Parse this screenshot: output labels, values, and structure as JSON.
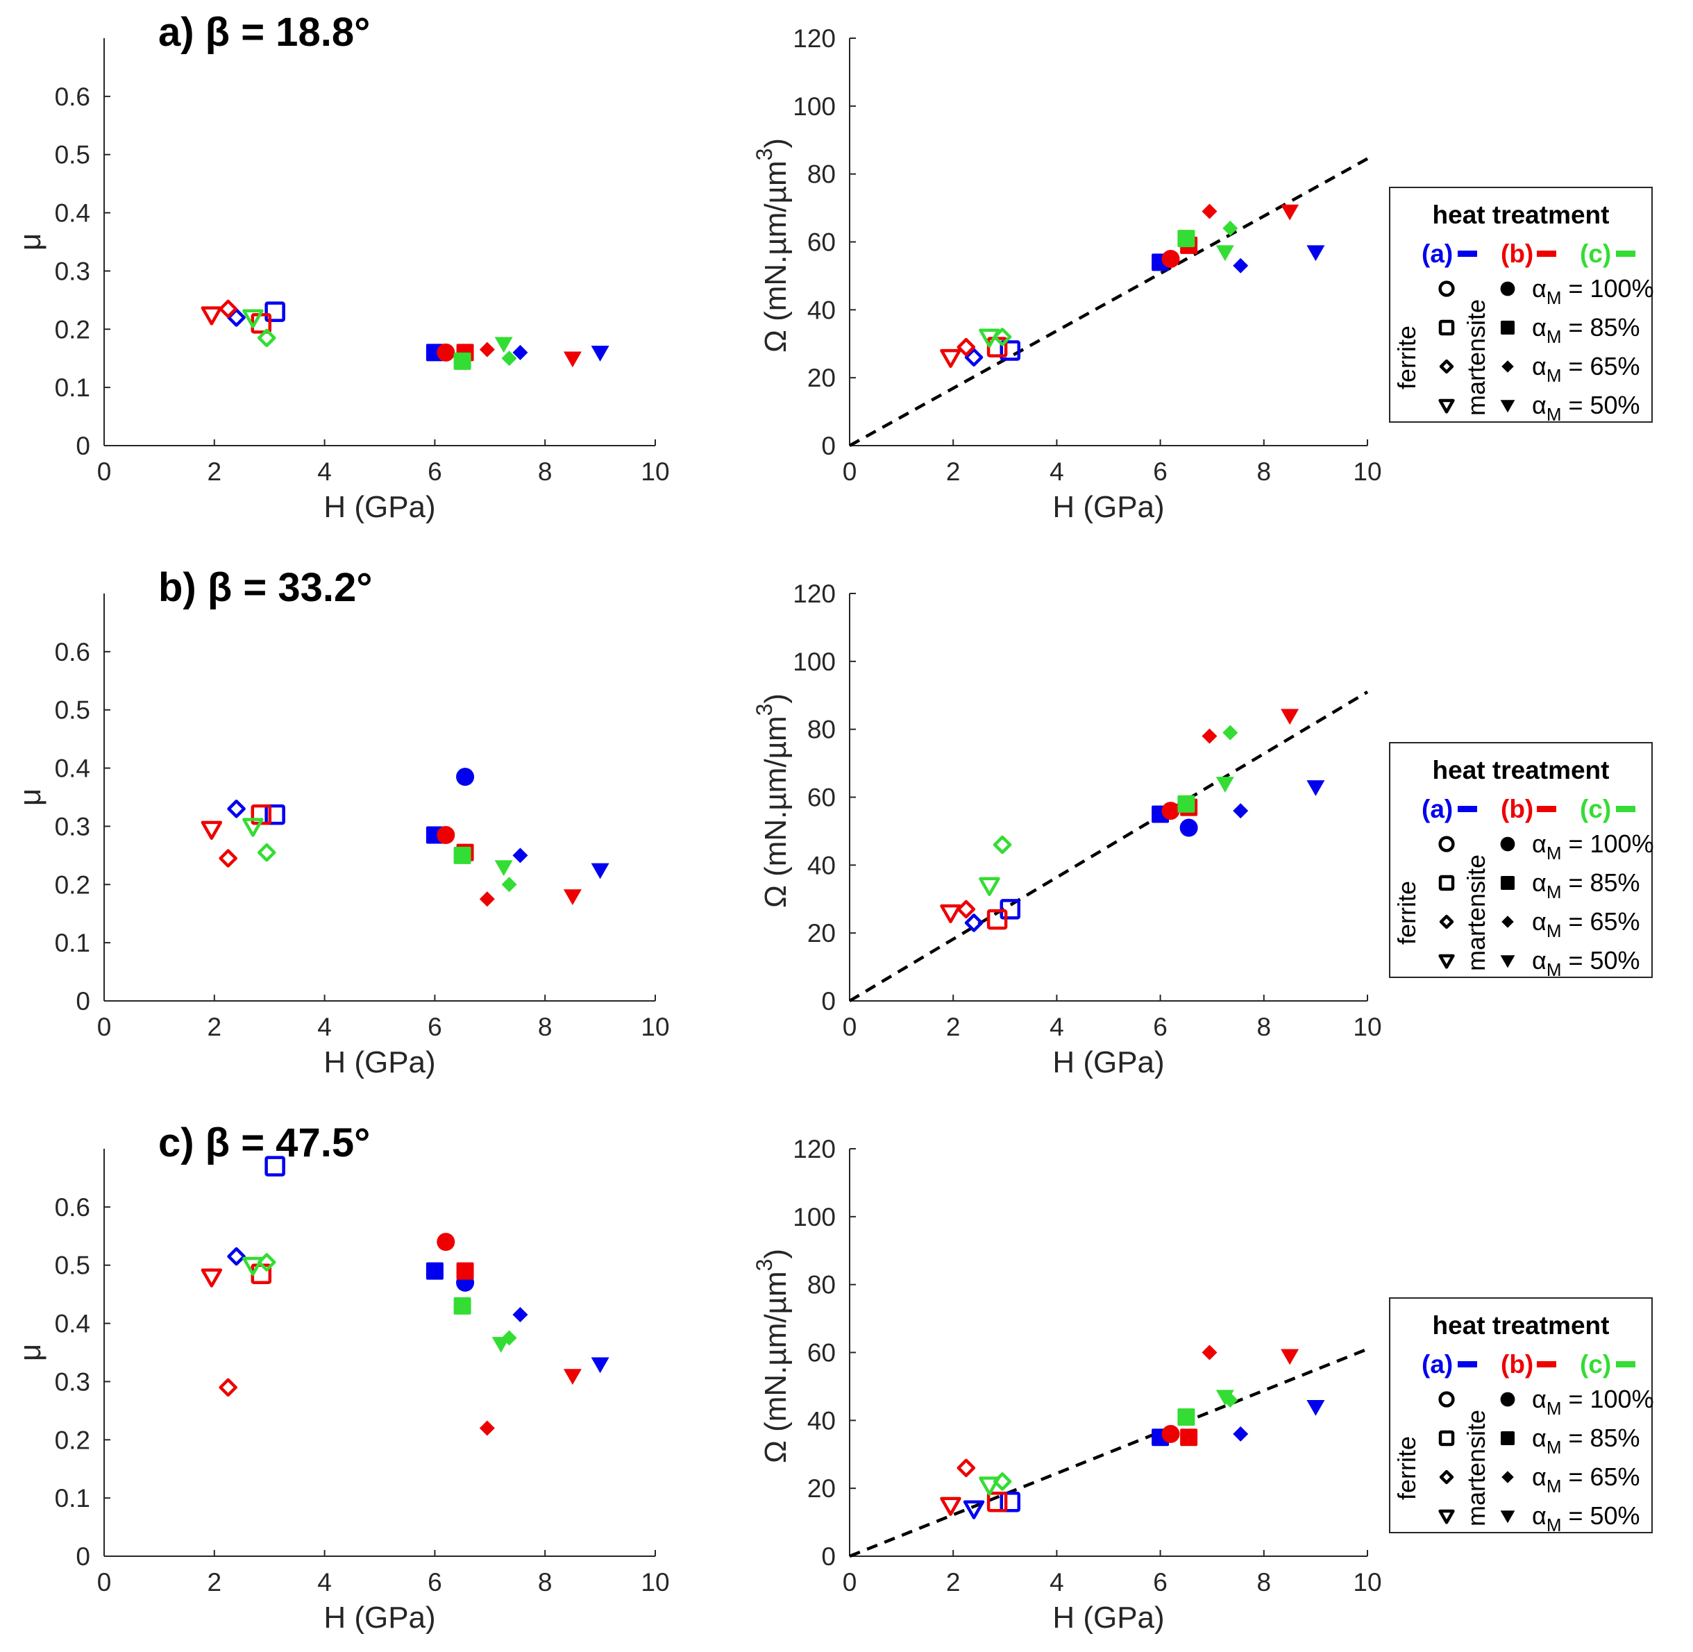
{
  "figure": {
    "colors": {
      "a": "#0000ee",
      "b": "#ee0000",
      "c": "#33dd33",
      "axis": "#262626"
    },
    "legend": {
      "title": "heat treatment",
      "groups": [
        {
          "key": "a",
          "label": "(a)"
        },
        {
          "key": "b",
          "label": "(b)"
        },
        {
          "key": "c",
          "label": "(c)"
        }
      ],
      "ferrite_label": "ferrite",
      "martensite_label": "martensite",
      "alpha_symbol": "α",
      "alpha_sub": "M",
      "rows": [
        {
          "marker": "circle",
          "label": " = 100%"
        },
        {
          "marker": "square",
          "label": " = 85%"
        },
        {
          "marker": "diamond",
          "label": " = 65%"
        },
        {
          "marker": "triangle",
          "label": " = 50%"
        }
      ]
    }
  },
  "chart_data": [
    {
      "panel": "a-mu",
      "type": "scatter",
      "title": "a) β = 18.8°",
      "xlabel": "H (GPa)",
      "ylabel": "μ",
      "xlim": [
        0,
        10
      ],
      "ylim": [
        0,
        0.7
      ],
      "xticks": [
        "0",
        "2",
        "4",
        "6",
        "8",
        "10"
      ],
      "yticks": [
        "0",
        "0.1",
        "0.2",
        "0.3",
        "0.4",
        "0.5",
        "0.6"
      ],
      "series": [
        {
          "treatment": "a",
          "phase": "ferrite",
          "points": [
            [
              2.4,
              0.22,
              "diamond"
            ],
            [
              3.1,
              0.23,
              "square"
            ]
          ]
        },
        {
          "treatment": "b",
          "phase": "ferrite",
          "points": [
            [
              1.95,
              0.225,
              "triangle"
            ],
            [
              2.25,
              0.235,
              "diamond"
            ],
            [
              2.85,
              0.21,
              "square"
            ]
          ]
        },
        {
          "treatment": "c",
          "phase": "ferrite",
          "points": [
            [
              2.7,
              0.22,
              "triangle"
            ],
            [
              2.95,
              0.185,
              "diamond"
            ]
          ]
        },
        {
          "treatment": "a",
          "phase": "martensite",
          "points": [
            [
              6.0,
              0.16,
              "square"
            ],
            [
              7.55,
              0.16,
              "diamond"
            ],
            [
              9.0,
              0.16,
              "triangle"
            ]
          ]
        },
        {
          "treatment": "b",
          "phase": "martensite",
          "points": [
            [
              6.2,
              0.16,
              "circle"
            ],
            [
              6.55,
              0.16,
              "square"
            ],
            [
              6.95,
              0.165,
              "diamond"
            ],
            [
              8.5,
              0.15,
              "triangle"
            ]
          ]
        },
        {
          "treatment": "c",
          "phase": "martensite",
          "points": [
            [
              6.5,
              0.145,
              "square"
            ],
            [
              7.25,
              0.175,
              "triangle"
            ],
            [
              7.35,
              0.15,
              "diamond"
            ]
          ]
        }
      ]
    },
    {
      "panel": "a-omega",
      "type": "scatter",
      "title": "",
      "xlabel": "H (GPa)",
      "ylabel": "Ω (mN.µm/µm",
      "ylabel_sup": "3",
      "ylabel_end": ")",
      "xlim": [
        0,
        10
      ],
      "ylim": [
        0,
        120
      ],
      "xticks": [
        "0",
        "2",
        "4",
        "6",
        "8",
        "10"
      ],
      "yticks": [
        "0",
        "20",
        "40",
        "60",
        "80",
        "100",
        "120"
      ],
      "fit_line": {
        "x": [
          0,
          10
        ],
        "y": [
          0,
          84.5
        ]
      },
      "series": [
        {
          "treatment": "a",
          "phase": "ferrite",
          "points": [
            [
              2.4,
              26,
              "diamond"
            ],
            [
              3.1,
              28,
              "square"
            ]
          ]
        },
        {
          "treatment": "b",
          "phase": "ferrite",
          "points": [
            [
              1.95,
              26,
              "triangle"
            ],
            [
              2.25,
              29,
              "diamond"
            ],
            [
              2.85,
              29,
              "square"
            ]
          ]
        },
        {
          "treatment": "c",
          "phase": "ferrite",
          "points": [
            [
              2.7,
              32,
              "triangle"
            ],
            [
              2.95,
              32,
              "diamond"
            ]
          ]
        },
        {
          "treatment": "a",
          "phase": "martensite",
          "points": [
            [
              6.0,
              54,
              "square"
            ],
            [
              7.55,
              53,
              "diamond"
            ],
            [
              9.0,
              57,
              "triangle"
            ]
          ]
        },
        {
          "treatment": "b",
          "phase": "martensite",
          "points": [
            [
              6.2,
              55,
              "circle"
            ],
            [
              6.55,
              59,
              "square"
            ],
            [
              6.95,
              69,
              "diamond"
            ],
            [
              8.5,
              69,
              "triangle"
            ]
          ]
        },
        {
          "treatment": "c",
          "phase": "martensite",
          "points": [
            [
              6.5,
              61,
              "square"
            ],
            [
              7.25,
              57,
              "triangle"
            ],
            [
              7.35,
              64,
              "diamond"
            ]
          ]
        }
      ]
    },
    {
      "panel": "b-mu",
      "type": "scatter",
      "title": "b) β = 33.2°",
      "xlabel": "H (GPa)",
      "ylabel": "μ",
      "xlim": [
        0,
        10
      ],
      "ylim": [
        0,
        0.7
      ],
      "xticks": [
        "0",
        "2",
        "4",
        "6",
        "8",
        "10"
      ],
      "yticks": [
        "0",
        "0.1",
        "0.2",
        "0.3",
        "0.4",
        "0.5",
        "0.6"
      ],
      "series": [
        {
          "treatment": "a",
          "phase": "ferrite",
          "points": [
            [
              2.4,
              0.33,
              "diamond"
            ],
            [
              3.1,
              0.32,
              "square"
            ]
          ]
        },
        {
          "treatment": "b",
          "phase": "ferrite",
          "points": [
            [
              1.95,
              0.295,
              "triangle"
            ],
            [
              2.25,
              0.245,
              "diamond"
            ],
            [
              2.85,
              0.32,
              "square"
            ]
          ]
        },
        {
          "treatment": "c",
          "phase": "ferrite",
          "points": [
            [
              2.7,
              0.3,
              "triangle"
            ],
            [
              2.95,
              0.255,
              "diamond"
            ]
          ]
        },
        {
          "treatment": "a",
          "phase": "martensite",
          "points": [
            [
              6.0,
              0.285,
              "square"
            ],
            [
              6.55,
              0.385,
              "circle"
            ],
            [
              7.55,
              0.25,
              "diamond"
            ],
            [
              9.0,
              0.225,
              "triangle"
            ]
          ]
        },
        {
          "treatment": "b",
          "phase": "martensite",
          "points": [
            [
              6.2,
              0.285,
              "circle"
            ],
            [
              6.55,
              0.255,
              "square"
            ],
            [
              6.95,
              0.175,
              "diamond"
            ],
            [
              8.5,
              0.18,
              "triangle"
            ]
          ]
        },
        {
          "treatment": "c",
          "phase": "martensite",
          "points": [
            [
              6.5,
              0.25,
              "square"
            ],
            [
              7.25,
              0.23,
              "triangle"
            ],
            [
              7.35,
              0.2,
              "diamond"
            ]
          ]
        }
      ]
    },
    {
      "panel": "b-omega",
      "type": "scatter",
      "title": "",
      "xlabel": "H (GPa)",
      "ylabel": "Ω (mN.µm/µm",
      "ylabel_sup": "3",
      "ylabel_end": ")",
      "xlim": [
        0,
        10
      ],
      "ylim": [
        0,
        120
      ],
      "xticks": [
        "0",
        "2",
        "4",
        "6",
        "8",
        "10"
      ],
      "yticks": [
        "0",
        "20",
        "40",
        "60",
        "80",
        "100",
        "120"
      ],
      "fit_line": {
        "x": [
          0,
          10
        ],
        "y": [
          0,
          91
        ]
      },
      "series": [
        {
          "treatment": "a",
          "phase": "ferrite",
          "points": [
            [
              2.4,
              23,
              "diamond"
            ],
            [
              3.1,
              27,
              "square"
            ]
          ]
        },
        {
          "treatment": "b",
          "phase": "ferrite",
          "points": [
            [
              1.95,
              26,
              "triangle"
            ],
            [
              2.25,
              27,
              "diamond"
            ],
            [
              2.85,
              24,
              "square"
            ]
          ]
        },
        {
          "treatment": "c",
          "phase": "ferrite",
          "points": [
            [
              2.7,
              34,
              "triangle"
            ],
            [
              2.95,
              46,
              "diamond"
            ]
          ]
        },
        {
          "treatment": "a",
          "phase": "martensite",
          "points": [
            [
              6.0,
              55,
              "square"
            ],
            [
              6.55,
              51,
              "circle"
            ],
            [
              7.55,
              56,
              "diamond"
            ],
            [
              9.0,
              63,
              "triangle"
            ]
          ]
        },
        {
          "treatment": "b",
          "phase": "martensite",
          "points": [
            [
              6.2,
              56,
              "circle"
            ],
            [
              6.55,
              57,
              "square"
            ],
            [
              6.95,
              78,
              "diamond"
            ],
            [
              8.5,
              84,
              "triangle"
            ]
          ]
        },
        {
          "treatment": "c",
          "phase": "martensite",
          "points": [
            [
              6.5,
              58,
              "square"
            ],
            [
              7.25,
              64,
              "triangle"
            ],
            [
              7.35,
              79,
              "diamond"
            ]
          ]
        }
      ]
    },
    {
      "panel": "c-mu",
      "type": "scatter",
      "title": "c) β = 47.5°",
      "xlabel": "H (GPa)",
      "ylabel": "μ",
      "xlim": [
        0,
        10
      ],
      "ylim": [
        0,
        0.7
      ],
      "xticks": [
        "0",
        "2",
        "4",
        "6",
        "8",
        "10"
      ],
      "yticks": [
        "0",
        "0.1",
        "0.2",
        "0.3",
        "0.4",
        "0.5",
        "0.6"
      ],
      "series": [
        {
          "treatment": "a",
          "phase": "ferrite",
          "points": [
            [
              2.4,
              0.515,
              "diamond"
            ],
            [
              3.1,
              0.67,
              "square"
            ]
          ]
        },
        {
          "treatment": "b",
          "phase": "ferrite",
          "points": [
            [
              1.95,
              0.48,
              "triangle"
            ],
            [
              2.25,
              0.29,
              "diamond"
            ],
            [
              2.85,
              0.485,
              "square"
            ]
          ]
        },
        {
          "treatment": "c",
          "phase": "ferrite",
          "points": [
            [
              2.7,
              0.5,
              "triangle"
            ],
            [
              2.95,
              0.505,
              "diamond"
            ]
          ]
        },
        {
          "treatment": "a",
          "phase": "martensite",
          "points": [
            [
              6.0,
              0.49,
              "square"
            ],
            [
              6.55,
              0.47,
              "circle"
            ],
            [
              7.55,
              0.415,
              "diamond"
            ],
            [
              9.0,
              0.33,
              "triangle"
            ]
          ]
        },
        {
          "treatment": "b",
          "phase": "martensite",
          "points": [
            [
              6.2,
              0.54,
              "circle"
            ],
            [
              6.55,
              0.49,
              "square"
            ],
            [
              6.95,
              0.22,
              "diamond"
            ],
            [
              8.5,
              0.31,
              "triangle"
            ]
          ]
        },
        {
          "treatment": "c",
          "phase": "martensite",
          "points": [
            [
              6.5,
              0.43,
              "square"
            ],
            [
              7.2,
              0.365,
              "triangle"
            ],
            [
              7.35,
              0.375,
              "diamond"
            ]
          ]
        }
      ]
    },
    {
      "panel": "c-omega",
      "type": "scatter",
      "title": "",
      "xlabel": "H (GPa)",
      "ylabel": "Ω (mN.µm/µm",
      "ylabel_sup": "3",
      "ylabel_end": ")",
      "xlim": [
        0,
        10
      ],
      "ylim": [
        0,
        120
      ],
      "xticks": [
        "0",
        "2",
        "4",
        "6",
        "8",
        "10"
      ],
      "yticks": [
        "0",
        "20",
        "40",
        "60",
        "80",
        "100",
        "120"
      ],
      "fit_line": {
        "x": [
          0,
          10
        ],
        "y": [
          0,
          61
        ]
      },
      "series": [
        {
          "treatment": "a",
          "phase": "ferrite",
          "points": [
            [
              2.4,
              14,
              "triangle"
            ],
            [
              3.1,
              16,
              "square"
            ]
          ]
        },
        {
          "treatment": "b",
          "phase": "ferrite",
          "points": [
            [
              1.95,
              15,
              "triangle"
            ],
            [
              2.25,
              26,
              "diamond"
            ],
            [
              2.85,
              16,
              "square"
            ]
          ]
        },
        {
          "treatment": "c",
          "phase": "ferrite",
          "points": [
            [
              2.7,
              21,
              "triangle"
            ],
            [
              2.95,
              22,
              "diamond"
            ]
          ]
        },
        {
          "treatment": "a",
          "phase": "martensite",
          "points": [
            [
              6.0,
              35,
              "square"
            ],
            [
              7.55,
              36,
              "diamond"
            ],
            [
              9.0,
              44,
              "triangle"
            ]
          ]
        },
        {
          "treatment": "b",
          "phase": "martensite",
          "points": [
            [
              6.2,
              36,
              "circle"
            ],
            [
              6.55,
              35,
              "square"
            ],
            [
              6.95,
              60,
              "diamond"
            ],
            [
              8.5,
              59,
              "triangle"
            ]
          ]
        },
        {
          "treatment": "c",
          "phase": "martensite",
          "points": [
            [
              6.5,
              41,
              "square"
            ],
            [
              7.25,
              47,
              "triangle"
            ],
            [
              7.35,
              46,
              "diamond"
            ]
          ]
        }
      ]
    }
  ]
}
